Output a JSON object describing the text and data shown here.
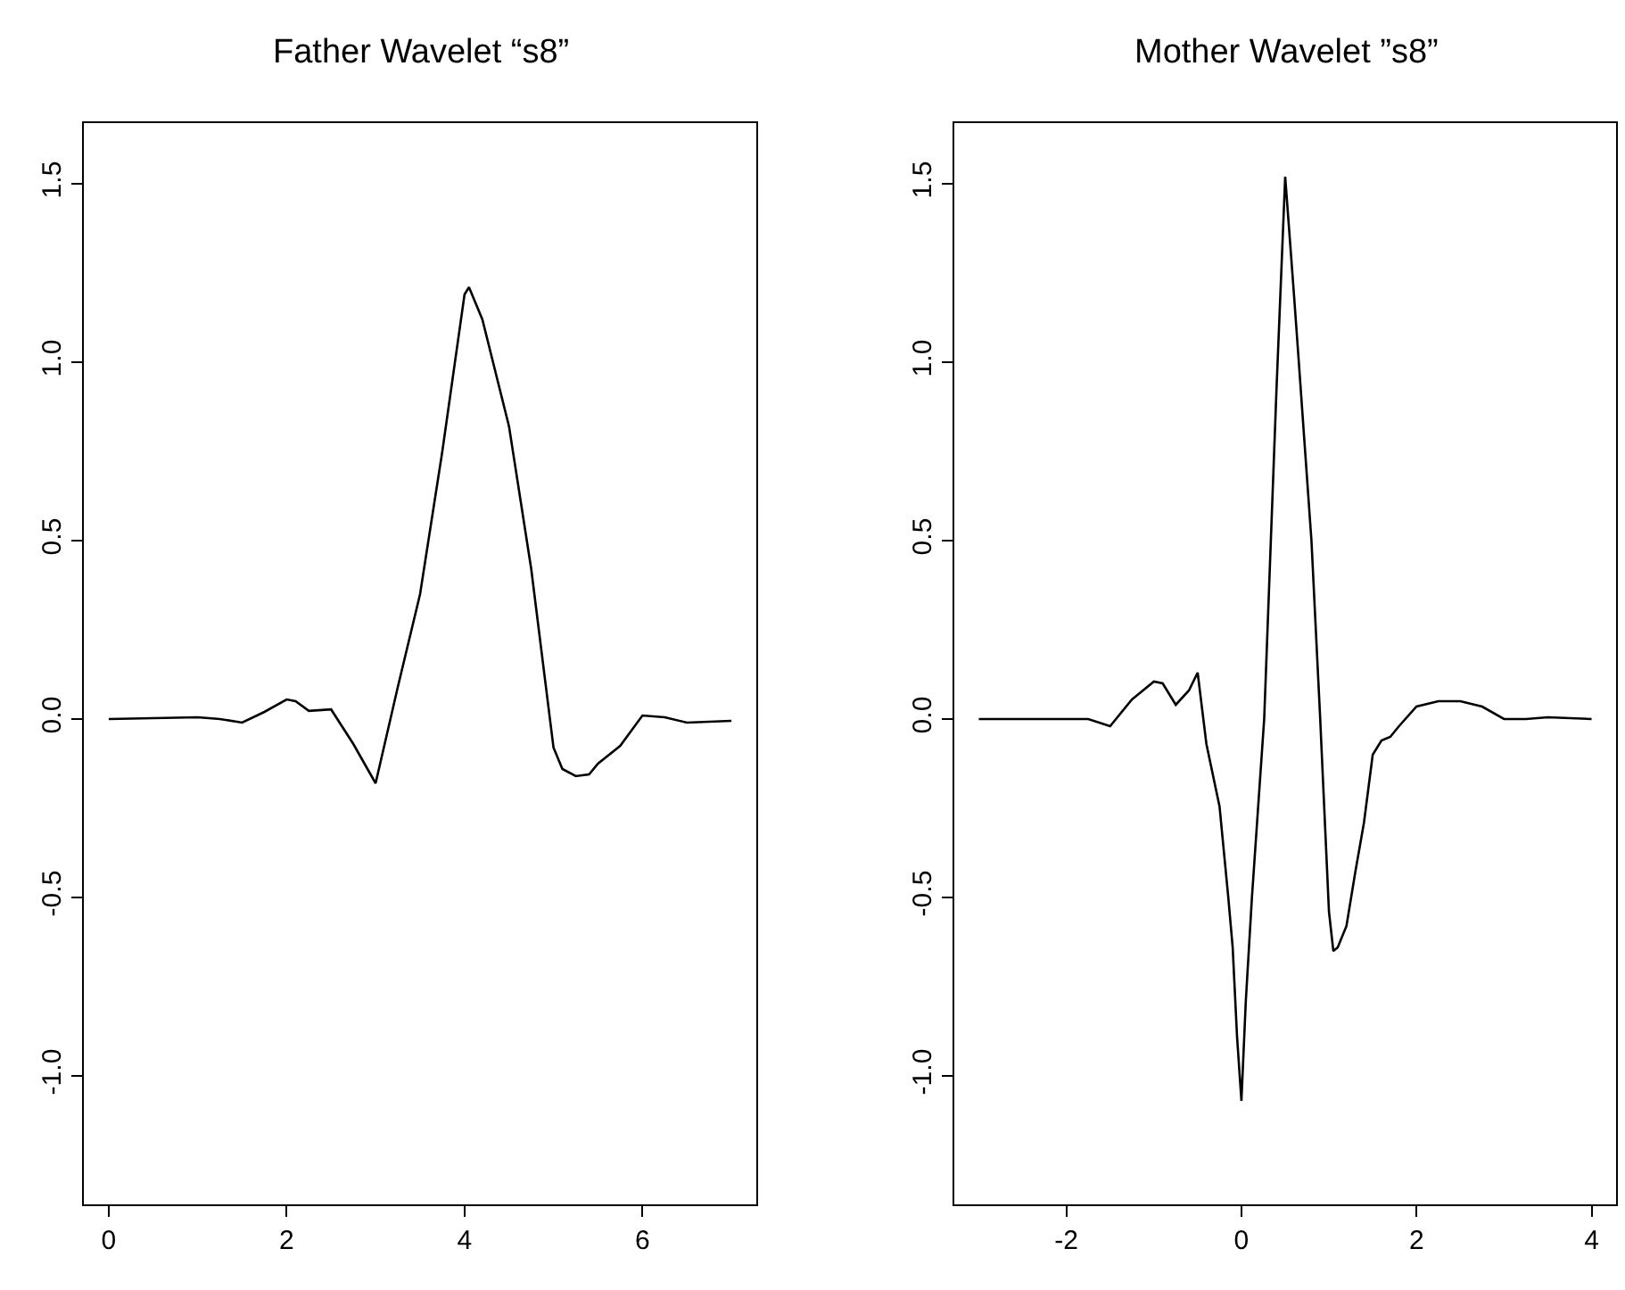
{
  "chart_data": [
    {
      "type": "line",
      "title": "Father Wavelet “s8”",
      "xlim": [
        -0.28,
        7.28
      ],
      "xticks": [
        0,
        2,
        4,
        6
      ],
      "ylim": [
        -1.36,
        1.67
      ],
      "yticks": [
        {
          "value": -1,
          "label": "-1.0"
        },
        {
          "value": -0.5,
          "label": "-0.5"
        },
        {
          "value": 0,
          "label": "0.0"
        },
        {
          "value": 0.5,
          "label": "0.5"
        },
        {
          "value": 1,
          "label": "1.0"
        },
        {
          "value": 1.5,
          "label": "1.5"
        }
      ],
      "marker": "none",
      "line_style": "solid",
      "series": [
        {
          "color": "#000000",
          "x": [
            0,
            1.0,
            1.25,
            1.5,
            1.75,
            2.0,
            2.1,
            2.25,
            2.5,
            2.75,
            3.0,
            3.25,
            3.5,
            3.75,
            4.0,
            4.05,
            4.2,
            4.5,
            4.75,
            5.0,
            5.1,
            5.25,
            5.4,
            5.5,
            5.75,
            6.0,
            6.25,
            6.5,
            7.0
          ],
          "values": [
            0,
            0.005,
            0,
            -0.01,
            0.02,
            0.055,
            0.05,
            0.023,
            0.027,
            -0.07,
            -0.18,
            0.09,
            0.35,
            0.75,
            1.19,
            1.21,
            1.12,
            0.82,
            0.42,
            -0.08,
            -0.14,
            -0.16,
            -0.155,
            -0.125,
            -0.075,
            0.01,
            0.005,
            -0.01,
            -0.005
          ]
        }
      ]
    },
    {
      "type": "line",
      "title": "Mother Wavelet ”s8”",
      "xlim": [
        -3.28,
        4.28
      ],
      "xticks": [
        -2,
        0,
        2,
        4
      ],
      "ylim": [
        -1.36,
        1.67
      ],
      "yticks": [
        {
          "value": -1,
          "label": "-1.0"
        },
        {
          "value": -0.5,
          "label": "-0.5"
        },
        {
          "value": 0,
          "label": "0.0"
        },
        {
          "value": 0.5,
          "label": "0.5"
        },
        {
          "value": 1,
          "label": "1.0"
        },
        {
          "value": 1.5,
          "label": "1.5"
        }
      ],
      "marker": "none",
      "line_style": "solid",
      "series": [
        {
          "color": "#000000",
          "x": [
            -3,
            -2,
            -1.75,
            -1.5,
            -1.25,
            -1.0,
            -0.9,
            -0.75,
            -0.6,
            -0.5,
            -0.4,
            -0.25,
            -0.15,
            -0.1,
            -0.05,
            0.0,
            0.05,
            0.12,
            0.26,
            0.4,
            0.5,
            0.6,
            0.65,
            0.8,
            0.9,
            1.0,
            1.05,
            1.1,
            1.2,
            1.3,
            1.4,
            1.5,
            1.6,
            1.7,
            1.8,
            2.0,
            2.25,
            2.5,
            2.75,
            3.0,
            3.25,
            3.5,
            4.0
          ],
          "values": [
            0,
            0,
            0,
            -0.02,
            0.055,
            0.105,
            0.1,
            0.04,
            0.08,
            0.13,
            -0.07,
            -0.245,
            -0.5,
            -0.64,
            -0.89,
            -1.07,
            -0.79,
            -0.5,
            0,
            0.92,
            1.52,
            1.19,
            1.02,
            0.5,
            0,
            -0.54,
            -0.65,
            -0.64,
            -0.58,
            -0.43,
            -0.29,
            -0.1,
            -0.06,
            -0.05,
            -0.02,
            0.035,
            0.05,
            0.05,
            0.035,
            0,
            0,
            0.005,
            0
          ]
        }
      ]
    }
  ]
}
